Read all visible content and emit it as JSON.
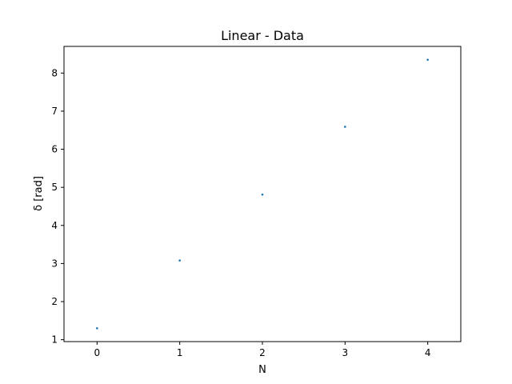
{
  "chart_data": {
    "type": "scatter",
    "title": "Linear - Data",
    "xlabel": "N",
    "ylabel": "δ [rad]",
    "xlim": [
      -0.4,
      4.4
    ],
    "ylim": [
      0.95,
      8.7
    ],
    "x_ticks": [
      0,
      1,
      2,
      3,
      4
    ],
    "y_ticks": [
      1,
      2,
      3,
      4,
      5,
      6,
      7,
      8
    ],
    "grid": false,
    "series": [
      {
        "color": "#1f77b4",
        "x": [
          0,
          1,
          2,
          3,
          4
        ],
        "y": [
          1.3,
          3.08,
          4.81,
          6.59,
          8.35
        ]
      }
    ]
  }
}
